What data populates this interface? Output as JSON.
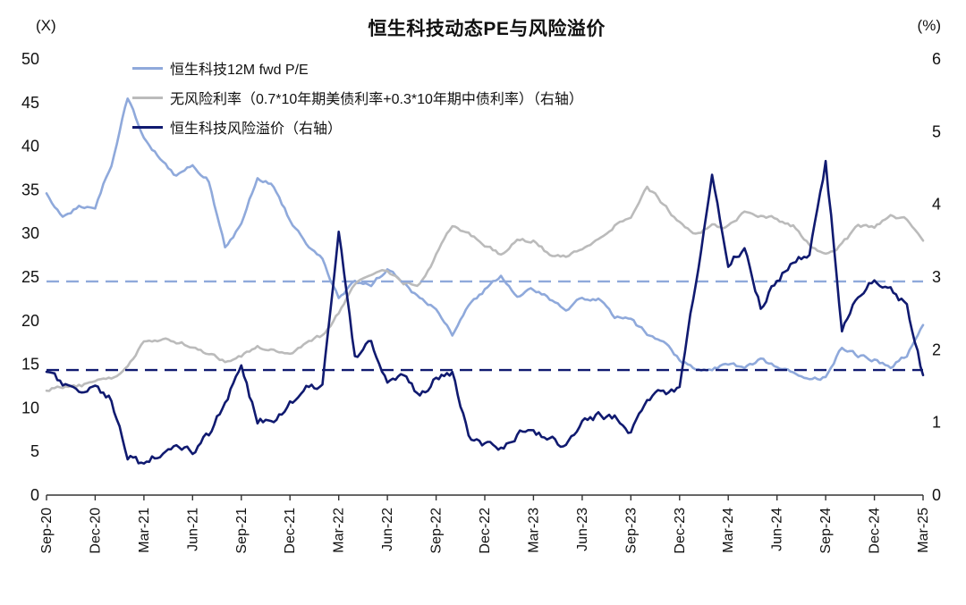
{
  "chart_data": {
    "type": "line",
    "title": "恒生科技动态PE与风险溢价",
    "left_axis": {
      "unit": "(X)",
      "min": 0,
      "max": 50,
      "ticks": [
        0,
        5,
        10,
        15,
        20,
        25,
        30,
        35,
        40,
        45,
        50
      ]
    },
    "right_axis": {
      "unit": "(%)",
      "min": 0,
      "max": 6,
      "ticks": [
        0,
        1,
        2,
        3,
        4,
        5,
        6
      ]
    },
    "x_monthly": [
      "Sep-20",
      "Oct-20",
      "Nov-20",
      "Dec-20",
      "Jan-21",
      "Feb-21",
      "Mar-21",
      "Apr-21",
      "May-21",
      "Jun-21",
      "Jul-21",
      "Aug-21",
      "Sep-21",
      "Oct-21",
      "Nov-21",
      "Dec-21",
      "Jan-22",
      "Feb-22",
      "Mar-22",
      "Apr-22",
      "May-22",
      "Jun-22",
      "Jul-22",
      "Aug-22",
      "Sep-22",
      "Oct-22",
      "Nov-22",
      "Dec-22",
      "Jan-23",
      "Feb-23",
      "Mar-23",
      "Apr-23",
      "May-23",
      "Jun-23",
      "Jul-23",
      "Aug-23",
      "Sep-23",
      "Oct-23",
      "Nov-23",
      "Dec-23",
      "Jan-24",
      "Feb-24",
      "Mar-24",
      "Apr-24",
      "May-24",
      "Jun-24",
      "Jul-24",
      "Aug-24",
      "Sep-24",
      "Oct-24",
      "Nov-24",
      "Dec-24",
      "Jan-25",
      "Feb-25",
      "Mar-25"
    ],
    "x_tick_labels": [
      "Sep-20",
      "Dec-20",
      "Mar-21",
      "Jun-21",
      "Sep-21",
      "Dec-21",
      "Mar-22",
      "Jun-22",
      "Sep-22",
      "Dec-22",
      "Mar-23",
      "Jun-23",
      "Sep-23",
      "Dec-23",
      "Mar-24",
      "Jun-24",
      "Sep-24",
      "Dec-24",
      "Mar-25"
    ],
    "x_tick_positions": [
      0,
      3,
      6,
      9,
      12,
      15,
      18,
      21,
      24,
      27,
      30,
      33,
      36,
      39,
      42,
      45,
      48,
      51,
      54
    ],
    "grid": false,
    "legend_position": "top-left-inside",
    "series": [
      {
        "name": "恒生科技12M fwd P/E",
        "axis": "left",
        "color": "#8FA9DB",
        "values": [
          34.5,
          32,
          33,
          33,
          38,
          45.5,
          41,
          38.5,
          36.5,
          38,
          36,
          28.5,
          31,
          36.5,
          35.5,
          31.5,
          29,
          27,
          22.5,
          24.5,
          24,
          26,
          24.5,
          22.5,
          21.5,
          18.5,
          21.5,
          23.5,
          25,
          23,
          23.5,
          22.5,
          21.5,
          22.5,
          22.5,
          20.5,
          20,
          18.5,
          17.5,
          15.5,
          14.5,
          14.5,
          15,
          14.5,
          15.5,
          14.5,
          14,
          13.5,
          13.5,
          17,
          16,
          15.5,
          14.8,
          16,
          19.5
        ]
      },
      {
        "name": "无风险利率（0.7*10年期美债利率+0.3*10年期中债利率）（右轴）",
        "axis": "right",
        "color": "#BBBBBB",
        "values": [
          1.45,
          1.5,
          1.5,
          1.55,
          1.6,
          1.75,
          2.1,
          2.15,
          2.1,
          2.05,
          1.95,
          1.85,
          1.9,
          2.05,
          2.0,
          1.95,
          2.1,
          2.2,
          2.5,
          2.9,
          3.0,
          3.1,
          2.9,
          2.9,
          3.3,
          3.7,
          3.6,
          3.45,
          3.3,
          3.5,
          3.5,
          3.3,
          3.3,
          3.4,
          3.5,
          3.7,
          3.8,
          4.25,
          4.0,
          3.75,
          3.6,
          3.7,
          3.7,
          3.9,
          3.85,
          3.8,
          3.7,
          3.45,
          3.3,
          3.45,
          3.7,
          3.7,
          3.85,
          3.8,
          3.5
        ]
      },
      {
        "name": "恒生科技风险溢价（右轴）",
        "axis": "right",
        "color": "#101A70",
        "values": [
          1.7,
          1.5,
          1.45,
          1.5,
          1.3,
          0.55,
          0.4,
          0.6,
          0.75,
          0.6,
          0.85,
          1.3,
          1.75,
          1.0,
          1.05,
          1.25,
          1.45,
          1.55,
          3.6,
          1.9,
          2.1,
          1.6,
          1.6,
          1.35,
          1.6,
          1.7,
          0.8,
          0.7,
          0.65,
          0.85,
          0.9,
          0.8,
          0.65,
          0.95,
          1.1,
          1.1,
          0.85,
          1.35,
          1.4,
          1.5,
          2.9,
          4.35,
          3.2,
          3.4,
          2.6,
          2.95,
          3.2,
          3.3,
          4.6,
          2.3,
          2.75,
          2.95,
          2.85,
          2.6,
          1.65
        ]
      }
    ],
    "reference_lines": [
      {
        "name": "PE均值虚线",
        "axis": "left",
        "value": 24.5,
        "color": "#8FA9DB",
        "style": "dashed"
      },
      {
        "name": "风险溢价均值虚线",
        "axis": "right",
        "value": 1.72,
        "color": "#101A70",
        "style": "dashed"
      }
    ]
  }
}
